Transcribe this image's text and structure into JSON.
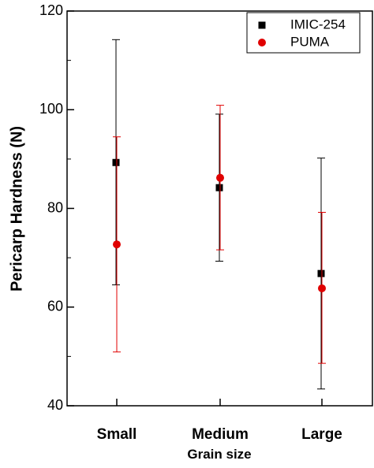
{
  "chart_data": {
    "type": "scatter",
    "title": "",
    "xlabel": "Grain size",
    "ylabel": "Pericarp Hardness (N)",
    "categories": [
      "Small",
      "Medium",
      "Large"
    ],
    "ylim": [
      40,
      120
    ],
    "yticks": [
      40,
      60,
      80,
      100,
      120
    ],
    "grid": false,
    "legend_position": "top-right",
    "series": [
      {
        "name": "IMIC-254",
        "marker": "square",
        "color": "#000000",
        "values": [
          89.3,
          84.2,
          66.8
        ],
        "error_low": [
          64.5,
          69.3,
          43.4
        ],
        "error_high": [
          114.2,
          99.1,
          90.2
        ]
      },
      {
        "name": "PUMA",
        "marker": "circle",
        "color": "#e00000",
        "values": [
          72.7,
          86.2,
          63.8
        ],
        "error_low": [
          50.9,
          71.6,
          48.6
        ],
        "error_high": [
          94.5,
          100.9,
          79.2
        ]
      }
    ]
  }
}
